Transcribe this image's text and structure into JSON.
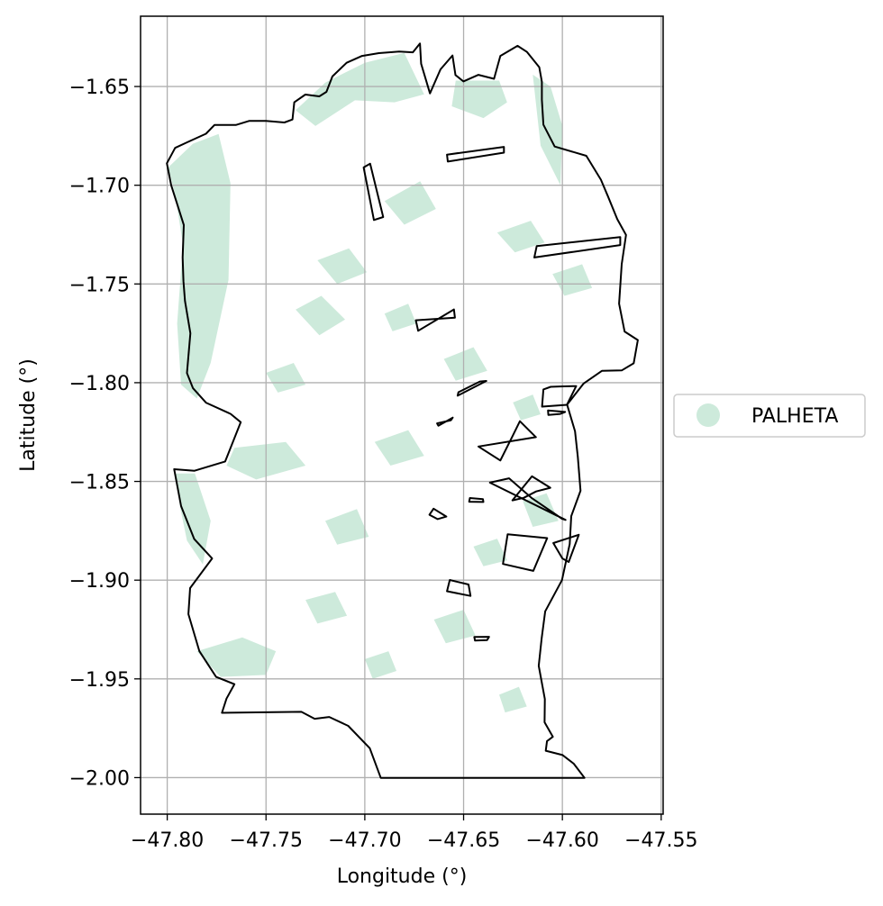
{
  "chart_data": {
    "type": "map",
    "xlabel": "Longitude (°)",
    "ylabel": "Latitude (°)",
    "xlim": [
      -47.8135,
      -47.549
    ],
    "ylim": [
      -2.0185,
      -1.6144
    ],
    "x_ticks": [
      -47.8,
      -47.75,
      -47.7,
      -47.65,
      -47.6,
      -47.55
    ],
    "x_tick_labels": [
      "−47.80",
      "−47.75",
      "−47.70",
      "−47.65",
      "−47.60",
      "−47.55"
    ],
    "y_ticks": [
      -1.65,
      -1.7,
      -1.75,
      -1.8,
      -1.85,
      -1.9,
      -1.95,
      -2.0
    ],
    "y_tick_labels": [
      "−1.65",
      "−1.70",
      "−1.75",
      "−1.80",
      "−1.85",
      "−1.90",
      "−1.95",
      "−2.00"
    ],
    "grid": true,
    "legend": {
      "placement": "right",
      "entries": [
        {
          "label": "PALHETA",
          "color": "#cdeadb"
        }
      ]
    },
    "colors": {
      "fill": "#cdeadb",
      "outline": "#000000",
      "grid": "#b0b0b0"
    },
    "boundary": [
      [
        -47.8002,
        -1.6889
      ],
      [
        -47.796,
        -1.6811
      ],
      [
        -47.7898,
        -1.6782
      ],
      [
        -47.7804,
        -1.6739
      ],
      [
        -47.7761,
        -1.6695
      ],
      [
        -47.7653,
        -1.6695
      ],
      [
        -47.7584,
        -1.6674
      ],
      [
        -47.75,
        -1.6674
      ],
      [
        -47.7407,
        -1.6682
      ],
      [
        -47.7366,
        -1.6667
      ],
      [
        -47.7357,
        -1.658
      ],
      [
        -47.7301,
        -1.6541
      ],
      [
        -47.723,
        -1.655
      ],
      [
        -47.7194,
        -1.6527
      ],
      [
        -47.7164,
        -1.6449
      ],
      [
        -47.7092,
        -1.638
      ],
      [
        -47.7014,
        -1.6345
      ],
      [
        -47.6929,
        -1.6331
      ],
      [
        -47.6826,
        -1.6323
      ],
      [
        -47.6757,
        -1.6327
      ],
      [
        -47.6721,
        -1.6282
      ],
      [
        -47.6715,
        -1.6385
      ],
      [
        -47.667,
        -1.6535
      ],
      [
        -47.6617,
        -1.6413
      ],
      [
        -47.6556,
        -1.6343
      ],
      [
        -47.6541,
        -1.6442
      ],
      [
        -47.6501,
        -1.6474
      ],
      [
        -47.6425,
        -1.6441
      ],
      [
        -47.6346,
        -1.6461
      ],
      [
        -47.6314,
        -1.6345
      ],
      [
        -47.6227,
        -1.6294
      ],
      [
        -47.6179,
        -1.6325
      ],
      [
        -47.6117,
        -1.6402
      ],
      [
        -47.6104,
        -1.6476
      ],
      [
        -47.6104,
        -1.6567
      ],
      [
        -47.6096,
        -1.6693
      ],
      [
        -47.6039,
        -1.6804
      ],
      [
        -47.5879,
        -1.6851
      ],
      [
        -47.5805,
        -1.6972
      ],
      [
        -47.577,
        -1.7055
      ],
      [
        -47.5722,
        -1.7172
      ],
      [
        -47.5678,
        -1.7252
      ],
      [
        -47.57,
        -1.74
      ],
      [
        -47.5713,
        -1.76
      ],
      [
        -47.5685,
        -1.7741
      ],
      [
        -47.5618,
        -1.7784
      ],
      [
        -47.5639,
        -1.7902
      ],
      [
        -47.57,
        -1.7938
      ],
      [
        -47.58,
        -1.794
      ],
      [
        -47.5892,
        -1.8004
      ],
      [
        -47.5976,
        -1.8111
      ],
      [
        -47.5936,
        -1.8246
      ],
      [
        -47.5922,
        -1.8376
      ],
      [
        -47.5908,
        -1.8547
      ],
      [
        -47.5955,
        -1.8676
      ],
      [
        -47.5963,
        -1.8817
      ],
      [
        -47.6002,
        -1.9
      ],
      [
        -47.6087,
        -1.9158
      ],
      [
        -47.6105,
        -1.9297
      ],
      [
        -47.612,
        -1.9434
      ],
      [
        -47.6089,
        -1.9602
      ],
      [
        -47.609,
        -1.972
      ],
      [
        -47.6048,
        -1.9793
      ],
      [
        -47.6078,
        -1.9815
      ],
      [
        -47.6084,
        -1.9864
      ],
      [
        -47.5999,
        -1.9886
      ],
      [
        -47.5943,
        -1.9929
      ],
      [
        -47.5888,
        -2.0001
      ],
      [
        -47.6919,
        -2.0001
      ],
      [
        -47.6975,
        -1.9851
      ],
      [
        -47.7084,
        -1.9738
      ],
      [
        -47.718,
        -1.9693
      ],
      [
        -47.7254,
        -1.9702
      ],
      [
        -47.7321,
        -1.9667
      ],
      [
        -47.7723,
        -1.9672
      ],
      [
        -47.77,
        -1.96
      ],
      [
        -47.766,
        -1.9527
      ],
      [
        -47.7753,
        -1.949
      ],
      [
        -47.7837,
        -1.936
      ],
      [
        -47.7893,
        -1.9172
      ],
      [
        -47.7884,
        -1.904
      ],
      [
        -47.7773,
        -1.889
      ],
      [
        -47.7863,
        -1.8792
      ],
      [
        -47.793,
        -1.8625
      ],
      [
        -47.7965,
        -1.8438
      ],
      [
        -47.7862,
        -1.8446
      ],
      [
        -47.7707,
        -1.8399
      ],
      [
        -47.7628,
        -1.82
      ],
      [
        -47.7679,
        -1.8158
      ],
      [
        -47.7804,
        -1.8101
      ],
      [
        -47.787,
        -1.8027
      ],
      [
        -47.79,
        -1.7951
      ],
      [
        -47.7883,
        -1.775
      ],
      [
        -47.791,
        -1.7586
      ],
      [
        -47.7918,
        -1.7486
      ],
      [
        -47.7922,
        -1.7366
      ],
      [
        -47.7916,
        -1.7201
      ],
      [
        -47.798,
        -1.7
      ],
      [
        -47.8002,
        -1.6889
      ]
    ],
    "parcels": [
      [
        [
          -47.7006,
          -1.691
        ],
        [
          -47.6973,
          -1.6891
        ],
        [
          -47.6907,
          -1.7161
        ],
        [
          -47.6954,
          -1.7176
        ]
      ],
      [
        [
          -47.6584,
          -1.6845
        ],
        [
          -47.658,
          -1.688
        ],
        [
          -47.6296,
          -1.6835
        ],
        [
          -47.6296,
          -1.6806
        ]
      ],
      [
        [
          -47.613,
          -1.7308
        ],
        [
          -47.6142,
          -1.7366
        ],
        [
          -47.5707,
          -1.7303
        ],
        [
          -47.5707,
          -1.7263
        ]
      ],
      [
        [
          -47.6742,
          -1.7684
        ],
        [
          -47.673,
          -1.7737
        ],
        [
          -47.6549,
          -1.7629
        ],
        [
          -47.6544,
          -1.7671
        ]
      ],
      [
        [
          -47.6526,
          -1.8048
        ],
        [
          -47.653,
          -1.8066
        ],
        [
          -47.6385,
          -1.7991
        ],
        [
          -47.6417,
          -1.7994
        ]
      ],
      [
        [
          -47.6634,
          -1.8206
        ],
        [
          -47.6628,
          -1.8218
        ],
        [
          -47.6555,
          -1.8177
        ],
        [
          -47.6564,
          -1.819
        ]
      ],
      [
        [
          -47.6425,
          -1.8323
        ],
        [
          -47.6314,
          -1.8394
        ],
        [
          -47.6253,
          -1.8272
        ],
        [
          -47.6215,
          -1.8195
        ],
        [
          -47.6134,
          -1.8276
        ]
      ],
      [
        [
          -47.6096,
          -1.8034
        ],
        [
          -47.6059,
          -1.8021
        ],
        [
          -47.6012,
          -1.8019
        ],
        [
          -47.593,
          -1.8017
        ],
        [
          -47.5977,
          -1.8112
        ],
        [
          -47.6103,
          -1.8121
        ]
      ],
      [
        [
          -47.6073,
          -1.8141
        ],
        [
          -47.6071,
          -1.8163
        ],
        [
          -47.6011,
          -1.8158
        ],
        [
          -47.5986,
          -1.8148
        ]
      ],
      [
        [
          -47.6367,
          -1.8506
        ],
        [
          -47.627,
          -1.8484
        ],
        [
          -47.6154,
          -1.8585
        ],
        [
          -47.6002,
          -1.8689
        ],
        [
          -47.5984,
          -1.8695
        ]
      ],
      [
        [
          -47.6253,
          -1.8596
        ],
        [
          -47.6196,
          -1.8583
        ],
        [
          -47.6133,
          -1.8551
        ],
        [
          -47.6061,
          -1.8532
        ],
        [
          -47.6154,
          -1.8474
        ]
      ],
      [
        [
          -47.6652,
          -1.8638
        ],
        [
          -47.6673,
          -1.8669
        ],
        [
          -47.6632,
          -1.8691
        ],
        [
          -47.6587,
          -1.8678
        ]
      ],
      [
        [
          -47.6468,
          -1.8584
        ],
        [
          -47.6472,
          -1.8603
        ],
        [
          -47.64,
          -1.8604
        ],
        [
          -47.6402,
          -1.859
        ]
      ],
      [
        [
          -47.6277,
          -1.8768
        ],
        [
          -47.6301,
          -1.8918
        ],
        [
          -47.6147,
          -1.8953
        ],
        [
          -47.6077,
          -1.8787
        ]
      ],
      [
        [
          -47.6,
          -1.889
        ],
        [
          -47.6046,
          -1.8812
        ],
        [
          -47.5917,
          -1.877
        ],
        [
          -47.5968,
          -1.8908
        ]
      ],
      [
        [
          -47.657,
          -1.8999
        ],
        [
          -47.6584,
          -1.9056
        ],
        [
          -47.6465,
          -1.908
        ],
        [
          -47.6475,
          -1.9022
        ]
      ],
      [
        [
          -47.6446,
          -1.9288
        ],
        [
          -47.6442,
          -1.9306
        ],
        [
          -47.6381,
          -1.9304
        ],
        [
          -47.6371,
          -1.9287
        ]
      ]
    ],
    "zones": [
      [
        [
          -47.7995,
          -1.691
        ],
        [
          -47.787,
          -1.679
        ],
        [
          -47.774,
          -1.674
        ],
        [
          -47.768,
          -1.699
        ],
        [
          -47.769,
          -1.748
        ],
        [
          -47.778,
          -1.79
        ],
        [
          -47.785,
          -1.808
        ],
        [
          -47.793,
          -1.801
        ],
        [
          -47.795,
          -1.77
        ],
        [
          -47.792,
          -1.73
        ],
        [
          -47.796,
          -1.705
        ]
      ],
      [
        [
          -47.735,
          -1.662
        ],
        [
          -47.72,
          -1.648
        ],
        [
          -47.7,
          -1.638
        ],
        [
          -47.68,
          -1.633
        ],
        [
          -47.67,
          -1.654
        ],
        [
          -47.685,
          -1.658
        ],
        [
          -47.705,
          -1.657
        ],
        [
          -47.725,
          -1.67
        ]
      ],
      [
        [
          -47.654,
          -1.647
        ],
        [
          -47.632,
          -1.647
        ],
        [
          -47.628,
          -1.658
        ],
        [
          -47.64,
          -1.666
        ],
        [
          -47.656,
          -1.66
        ]
      ],
      [
        [
          -47.615,
          -1.644
        ],
        [
          -47.611,
          -1.68
        ],
        [
          -47.601,
          -1.7
        ],
        [
          -47.6,
          -1.67
        ],
        [
          -47.606,
          -1.65
        ]
      ],
      [
        [
          -47.796,
          -1.846
        ],
        [
          -47.786,
          -1.846
        ],
        [
          -47.778,
          -1.87
        ],
        [
          -47.782,
          -1.892
        ],
        [
          -47.79,
          -1.88
        ],
        [
          -47.7935,
          -1.863
        ]
      ],
      [
        [
          -47.766,
          -1.833
        ],
        [
          -47.74,
          -1.83
        ],
        [
          -47.73,
          -1.842
        ],
        [
          -47.755,
          -1.849
        ],
        [
          -47.77,
          -1.842
        ]
      ],
      [
        [
          -47.785,
          -1.936
        ],
        [
          -47.762,
          -1.929
        ],
        [
          -47.745,
          -1.936
        ],
        [
          -47.75,
          -1.948
        ],
        [
          -47.773,
          -1.949
        ]
      ],
      [
        [
          -47.735,
          -1.763
        ],
        [
          -47.722,
          -1.756
        ],
        [
          -47.71,
          -1.768
        ],
        [
          -47.723,
          -1.776
        ]
      ],
      [
        [
          -47.724,
          -1.738
        ],
        [
          -47.708,
          -1.732
        ],
        [
          -47.699,
          -1.744
        ],
        [
          -47.714,
          -1.75
        ]
      ],
      [
        [
          -47.69,
          -1.708
        ],
        [
          -47.672,
          -1.698
        ],
        [
          -47.664,
          -1.712
        ],
        [
          -47.68,
          -1.72
        ]
      ],
      [
        [
          -47.633,
          -1.724
        ],
        [
          -47.616,
          -1.718
        ],
        [
          -47.609,
          -1.729
        ],
        [
          -47.624,
          -1.734
        ]
      ],
      [
        [
          -47.66,
          -1.788
        ],
        [
          -47.645,
          -1.782
        ],
        [
          -47.638,
          -1.794
        ],
        [
          -47.654,
          -1.799
        ]
      ],
      [
        [
          -47.695,
          -1.83
        ],
        [
          -47.678,
          -1.824
        ],
        [
          -47.67,
          -1.837
        ],
        [
          -47.687,
          -1.842
        ]
      ],
      [
        [
          -47.72,
          -1.87
        ],
        [
          -47.704,
          -1.864
        ],
        [
          -47.698,
          -1.878
        ],
        [
          -47.714,
          -1.882
        ]
      ],
      [
        [
          -47.665,
          -1.92
        ],
        [
          -47.65,
          -1.915
        ],
        [
          -47.644,
          -1.928
        ],
        [
          -47.659,
          -1.932
        ]
      ],
      [
        [
          -47.62,
          -1.86
        ],
        [
          -47.608,
          -1.856
        ],
        [
          -47.602,
          -1.87
        ],
        [
          -47.615,
          -1.873
        ]
      ],
      [
        [
          -47.632,
          -1.958
        ],
        [
          -47.622,
          -1.954
        ],
        [
          -47.618,
          -1.964
        ],
        [
          -47.629,
          -1.967
        ]
      ],
      [
        [
          -47.73,
          -1.91
        ],
        [
          -47.715,
          -1.906
        ],
        [
          -47.709,
          -1.918
        ],
        [
          -47.724,
          -1.922
        ]
      ],
      [
        [
          -47.645,
          -1.883
        ],
        [
          -47.633,
          -1.879
        ],
        [
          -47.628,
          -1.89
        ],
        [
          -47.64,
          -1.893
        ]
      ],
      [
        [
          -47.75,
          -1.795
        ],
        [
          -47.736,
          -1.79
        ],
        [
          -47.73,
          -1.801
        ],
        [
          -47.744,
          -1.805
        ]
      ],
      [
        [
          -47.605,
          -1.745
        ],
        [
          -47.59,
          -1.74
        ],
        [
          -47.585,
          -1.752
        ],
        [
          -47.599,
          -1.756
        ]
      ],
      [
        [
          -47.69,
          -1.765
        ],
        [
          -47.678,
          -1.76
        ],
        [
          -47.674,
          -1.77
        ],
        [
          -47.686,
          -1.774
        ]
      ],
      [
        [
          -47.7,
          -1.94
        ],
        [
          -47.688,
          -1.936
        ],
        [
          -47.684,
          -1.946
        ],
        [
          -47.696,
          -1.95
        ]
      ],
      [
        [
          -47.625,
          -1.81
        ],
        [
          -47.615,
          -1.806
        ],
        [
          -47.611,
          -1.816
        ],
        [
          -47.621,
          -1.819
        ]
      ]
    ]
  }
}
